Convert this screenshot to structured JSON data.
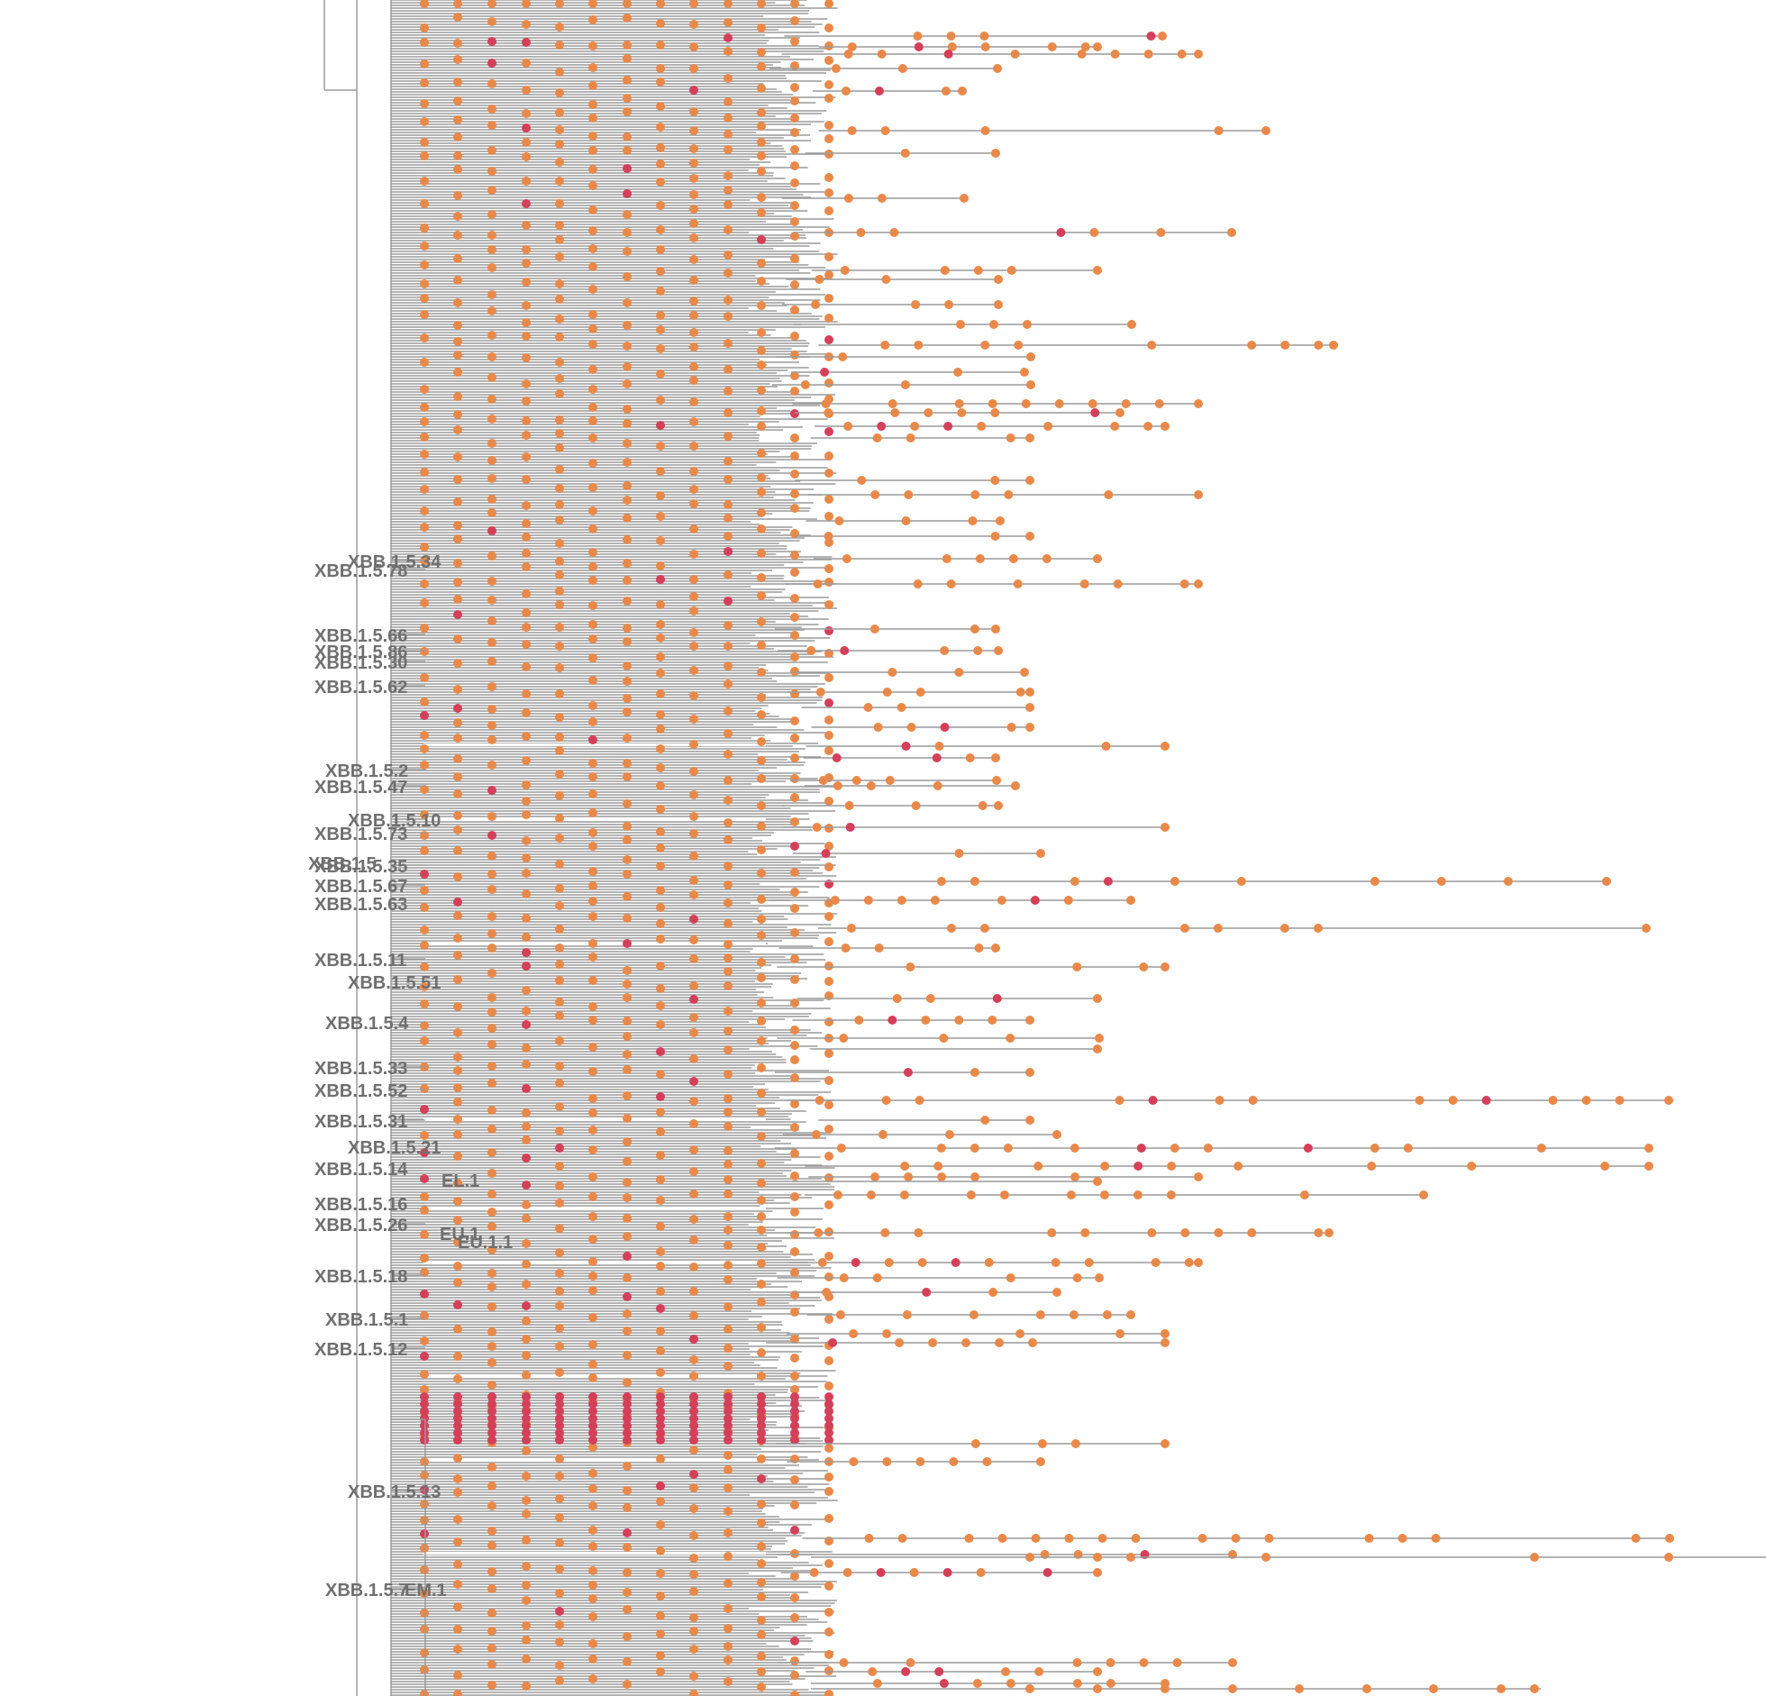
{
  "diagram": {
    "type": "phylogenetic-tree",
    "colors": {
      "branch": "#9a9a9a",
      "tip": "#e8894a",
      "tip_highlight": "#d43f5a",
      "label": "#6f6f6f",
      "background": "#ffffff"
    },
    "clade_labels": [
      "XBB.1.5.34",
      "XBB.1.5.78",
      "XBB.1.5.66",
      "XBB.1.5.86",
      "XBB.1.5.30",
      "XBB.1.5.62",
      "XBB.1.5.2",
      "XBB.1.5.47",
      "XBB.1.5.10",
      "XBB.1.5.73",
      "XBB.1.5",
      "XBB.1.5.35",
      "XBB.1.5.67",
      "XBB.1.5.63",
      "XBB.1.5.11",
      "XBB.1.5.51",
      "XBB.1.5.4",
      "XBB.1.5.33",
      "XBB.1.5.52",
      "XBB.1.5.31",
      "XBB.1.5.21",
      "XBB.1.5.14",
      "EL.1",
      "XBB.1.5.16",
      "XBB.1.5.26",
      "EU.1",
      "EU.1.1",
      "XBB.1.5.18",
      "XBB.1.5.1",
      "XBB.1.5.12",
      "XBB.1.5.13",
      "XBB.1.5.7",
      "EM.1"
    ]
  }
}
